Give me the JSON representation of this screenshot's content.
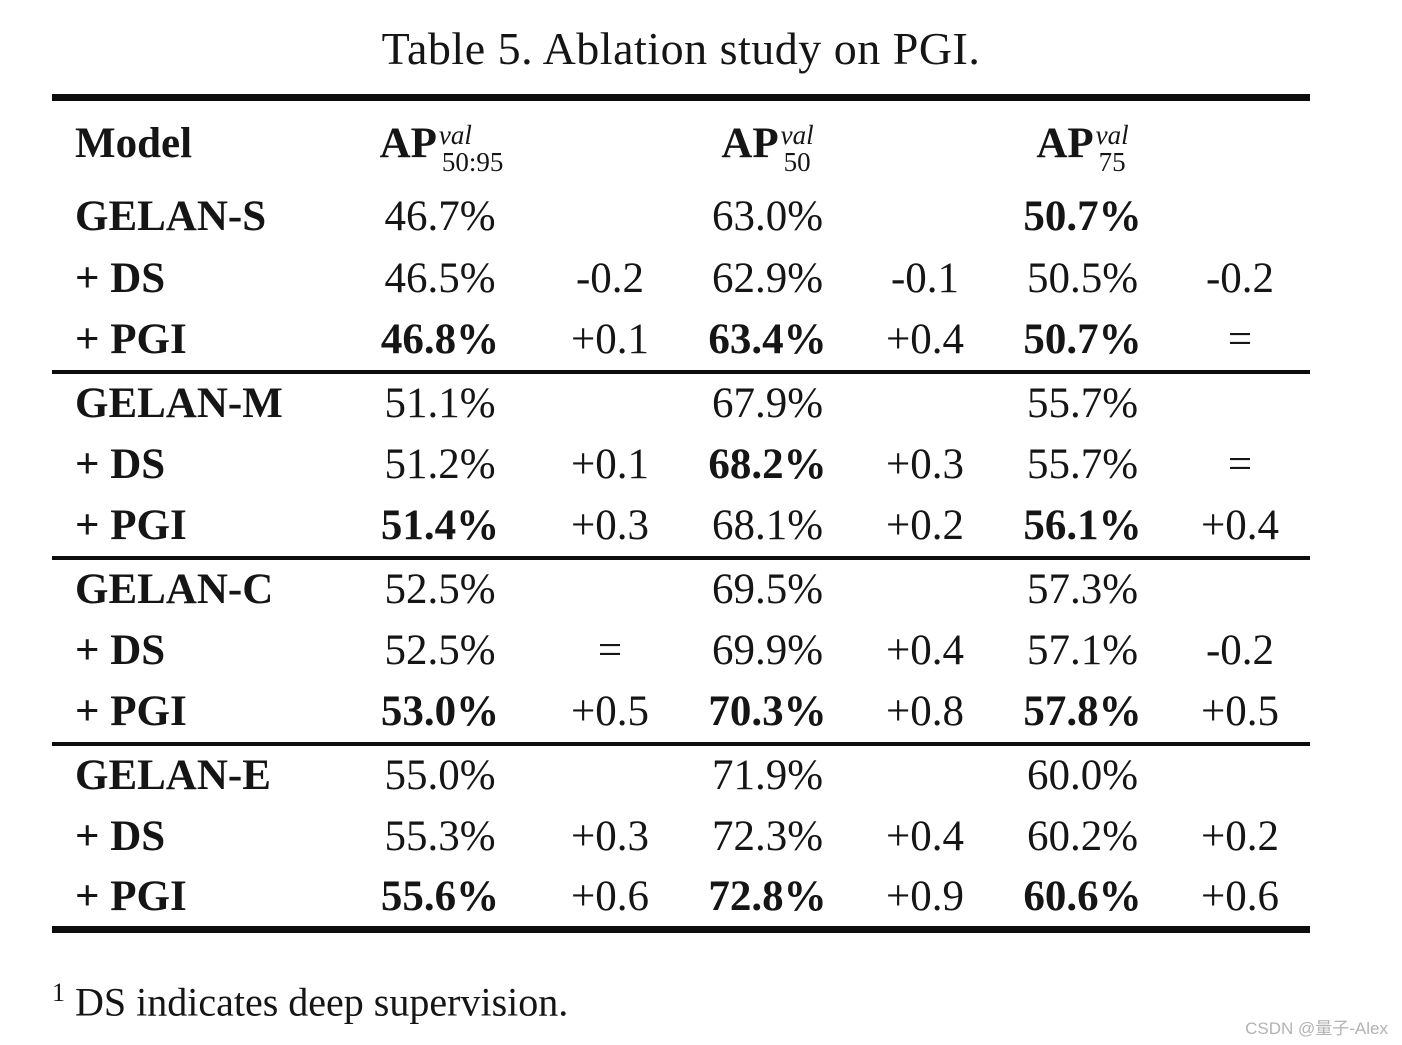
{
  "page": {
    "caption": "Table 5. Ablation study on PGI.",
    "footnote": {
      "marker": "1",
      "text": "DS indicates deep supervision."
    },
    "watermark": "CSDN @量子-Alex",
    "colors": {
      "text": "#151515",
      "rule": "#0d0d0d",
      "watermark": "#b3b3b3",
      "background": "#ffffff"
    }
  },
  "chart_data": {
    "type": "table",
    "title": "Table 5. Ablation study on PGI.",
    "headers": {
      "model": "Model",
      "ap_columns": [
        {
          "base": "AP",
          "sup": "val",
          "sub": "50:95"
        },
        {
          "base": "AP",
          "sup": "val",
          "sub": "50"
        },
        {
          "base": "AP",
          "sup": "val",
          "sub": "75"
        }
      ]
    },
    "blocks": [
      {
        "rows": [
          {
            "cells": [
              {
                "text": "GELAN-S",
                "bold": true
              },
              {
                "text": "46.7%",
                "bold": false
              },
              {
                "text": "",
                "bold": false
              },
              {
                "text": "63.0%",
                "bold": false
              },
              {
                "text": "",
                "bold": false
              },
              {
                "text": "50.7%",
                "bold": true
              },
              {
                "text": "",
                "bold": false
              }
            ]
          },
          {
            "cells": [
              {
                "text": "+ DS",
                "bold": true
              },
              {
                "text": "46.5%",
                "bold": false
              },
              {
                "text": "-0.2",
                "bold": false
              },
              {
                "text": "62.9%",
                "bold": false
              },
              {
                "text": "-0.1",
                "bold": false
              },
              {
                "text": "50.5%",
                "bold": false
              },
              {
                "text": "-0.2",
                "bold": false
              }
            ]
          },
          {
            "cells": [
              {
                "text": "+ PGI",
                "bold": true
              },
              {
                "text": "46.8%",
                "bold": true
              },
              {
                "text": "+0.1",
                "bold": false
              },
              {
                "text": "63.4%",
                "bold": true
              },
              {
                "text": "+0.4",
                "bold": false
              },
              {
                "text": "50.7%",
                "bold": true
              },
              {
                "text": "=",
                "bold": false
              }
            ]
          }
        ]
      },
      {
        "rows": [
          {
            "cells": [
              {
                "text": "GELAN-M",
                "bold": true
              },
              {
                "text": "51.1%",
                "bold": false
              },
              {
                "text": "",
                "bold": false
              },
              {
                "text": "67.9%",
                "bold": false
              },
              {
                "text": "",
                "bold": false
              },
              {
                "text": "55.7%",
                "bold": false
              },
              {
                "text": "",
                "bold": false
              }
            ]
          },
          {
            "cells": [
              {
                "text": "+ DS",
                "bold": true
              },
              {
                "text": "51.2%",
                "bold": false
              },
              {
                "text": "+0.1",
                "bold": false
              },
              {
                "text": "68.2%",
                "bold": true
              },
              {
                "text": "+0.3",
                "bold": false
              },
              {
                "text": "55.7%",
                "bold": false
              },
              {
                "text": "=",
                "bold": false
              }
            ]
          },
          {
            "cells": [
              {
                "text": "+ PGI",
                "bold": true
              },
              {
                "text": "51.4%",
                "bold": true
              },
              {
                "text": "+0.3",
                "bold": false
              },
              {
                "text": "68.1%",
                "bold": false
              },
              {
                "text": "+0.2",
                "bold": false
              },
              {
                "text": "56.1%",
                "bold": true
              },
              {
                "text": "+0.4",
                "bold": false
              }
            ]
          }
        ]
      },
      {
        "rows": [
          {
            "cells": [
              {
                "text": "GELAN-C",
                "bold": true
              },
              {
                "text": "52.5%",
                "bold": false
              },
              {
                "text": "",
                "bold": false
              },
              {
                "text": "69.5%",
                "bold": false
              },
              {
                "text": "",
                "bold": false
              },
              {
                "text": "57.3%",
                "bold": false
              },
              {
                "text": "",
                "bold": false
              }
            ]
          },
          {
            "cells": [
              {
                "text": "+ DS",
                "bold": true
              },
              {
                "text": "52.5%",
                "bold": false
              },
              {
                "text": "=",
                "bold": false
              },
              {
                "text": "69.9%",
                "bold": false
              },
              {
                "text": "+0.4",
                "bold": false
              },
              {
                "text": "57.1%",
                "bold": false
              },
              {
                "text": "-0.2",
                "bold": false
              }
            ]
          },
          {
            "cells": [
              {
                "text": "+ PGI",
                "bold": true
              },
              {
                "text": "53.0%",
                "bold": true
              },
              {
                "text": "+0.5",
                "bold": false
              },
              {
                "text": "70.3%",
                "bold": true
              },
              {
                "text": "+0.8",
                "bold": false
              },
              {
                "text": "57.8%",
                "bold": true
              },
              {
                "text": "+0.5",
                "bold": false
              }
            ]
          }
        ]
      },
      {
        "rows": [
          {
            "cells": [
              {
                "text": "GELAN-E",
                "bold": true
              },
              {
                "text": "55.0%",
                "bold": false
              },
              {
                "text": "",
                "bold": false
              },
              {
                "text": "71.9%",
                "bold": false
              },
              {
                "text": "",
                "bold": false
              },
              {
                "text": "60.0%",
                "bold": false
              },
              {
                "text": "",
                "bold": false
              }
            ]
          },
          {
            "cells": [
              {
                "text": "+ DS",
                "bold": true
              },
              {
                "text": "55.3%",
                "bold": false
              },
              {
                "text": "+0.3",
                "bold": false
              },
              {
                "text": "72.3%",
                "bold": false
              },
              {
                "text": "+0.4",
                "bold": false
              },
              {
                "text": "60.2%",
                "bold": false
              },
              {
                "text": "+0.2",
                "bold": false
              }
            ]
          },
          {
            "cells": [
              {
                "text": "+ PGI",
                "bold": true
              },
              {
                "text": "55.6%",
                "bold": true
              },
              {
                "text": "+0.6",
                "bold": false
              },
              {
                "text": "72.8%",
                "bold": true
              },
              {
                "text": "+0.9",
                "bold": false
              },
              {
                "text": "60.6%",
                "bold": true
              },
              {
                "text": "+0.6",
                "bold": false
              }
            ]
          }
        ]
      }
    ]
  }
}
